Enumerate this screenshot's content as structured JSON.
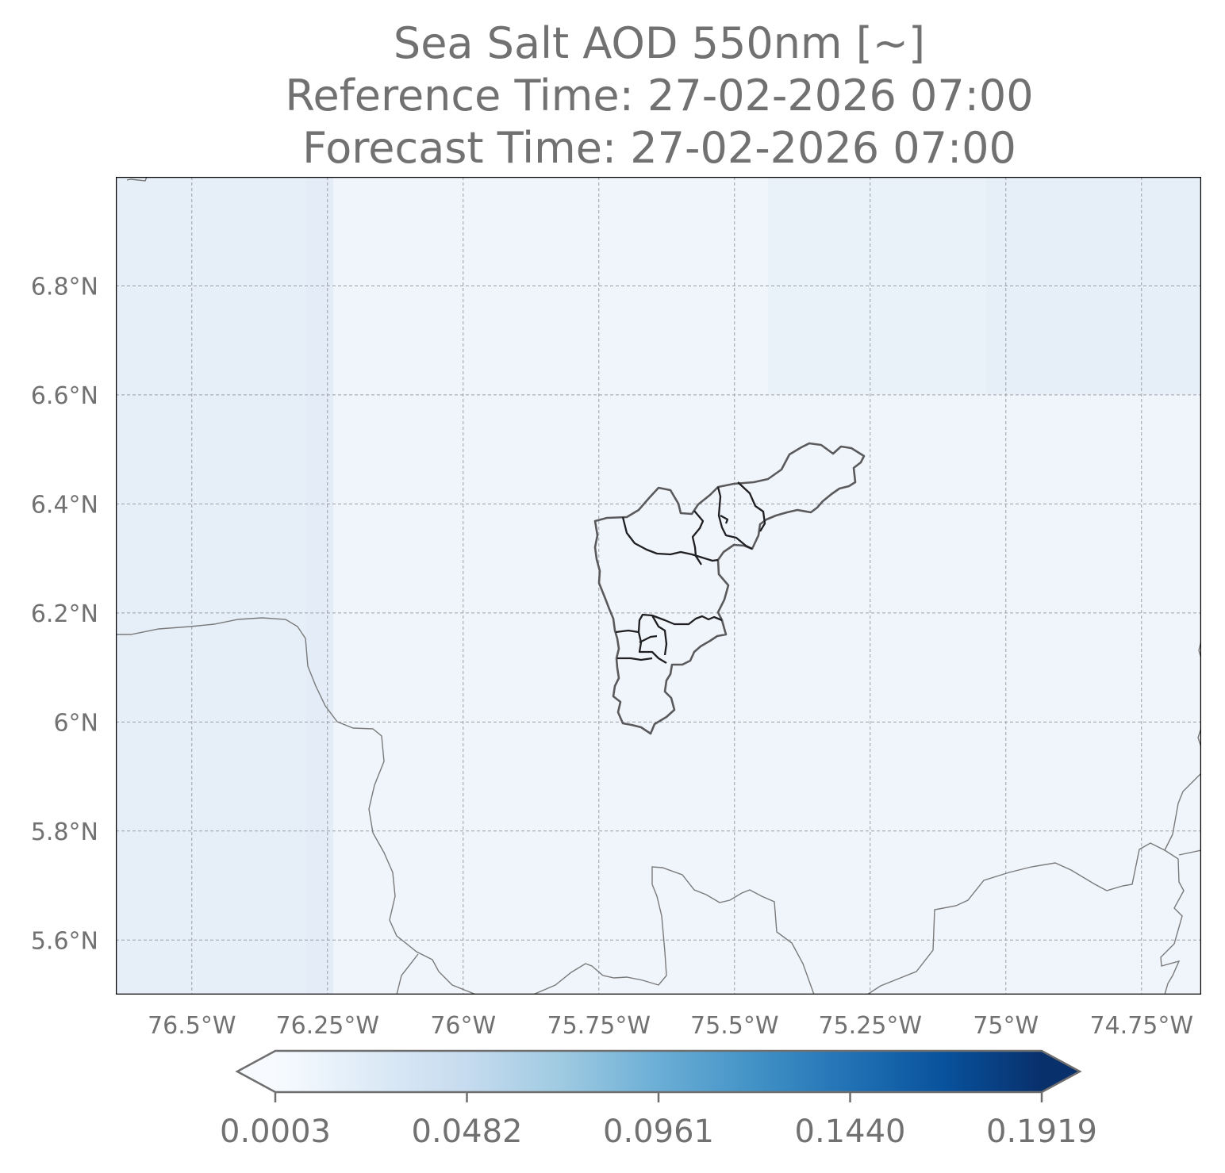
{
  "title": {
    "line1": "Sea Salt AOD 550nm [~]",
    "line2": "Reference Time: 27-02-2026 07:00",
    "line3": "Forecast Time: 27-02-2026 07:00"
  },
  "map": {
    "extent": {
      "lon_min": -76.64,
      "lon_max": -74.64,
      "lat_min": 5.5,
      "lat_max": 7.0
    },
    "lat_ticks": [
      {
        "value": 6.8,
        "label": "6.8°N"
      },
      {
        "value": 6.6,
        "label": "6.6°N"
      },
      {
        "value": 6.4,
        "label": "6.4°N"
      },
      {
        "value": 6.2,
        "label": "6.2°N"
      },
      {
        "value": 6.0,
        "label": "6°N"
      },
      {
        "value": 5.8,
        "label": "5.8°N"
      },
      {
        "value": 5.6,
        "label": "5.6°N"
      }
    ],
    "lon_ticks": [
      {
        "value": -76.5,
        "label": "76.5°W"
      },
      {
        "value": -76.25,
        "label": "76.25°W"
      },
      {
        "value": -76.0,
        "label": "76°W"
      },
      {
        "value": -75.75,
        "label": "75.75°W"
      },
      {
        "value": -75.5,
        "label": "75.5°W"
      },
      {
        "value": -75.25,
        "label": "75.25°W"
      },
      {
        "value": -75.0,
        "label": "75°W"
      },
      {
        "value": -74.75,
        "label": "74.75°W"
      }
    ],
    "gridlines": true,
    "field_colors": {
      "background": "#f0f5fb",
      "west_band": "#e6eef8",
      "west_strip": "#e3ecf7",
      "east_upper": "#e9f1f9",
      "east_upper_far": "#e6eff8"
    }
  },
  "colorbar": {
    "min": 0.0003,
    "max": 0.1919,
    "extend": "both",
    "ticks": [
      "0.0003",
      "0.0482",
      "0.0961",
      "0.1440",
      "0.1919"
    ],
    "colormap": "Blues",
    "colormap_stops": [
      "#f7fbff",
      "#deebf7",
      "#c6dbef",
      "#9ecae1",
      "#6baed6",
      "#4292c6",
      "#2171b5",
      "#08519c",
      "#08306b"
    ]
  }
}
